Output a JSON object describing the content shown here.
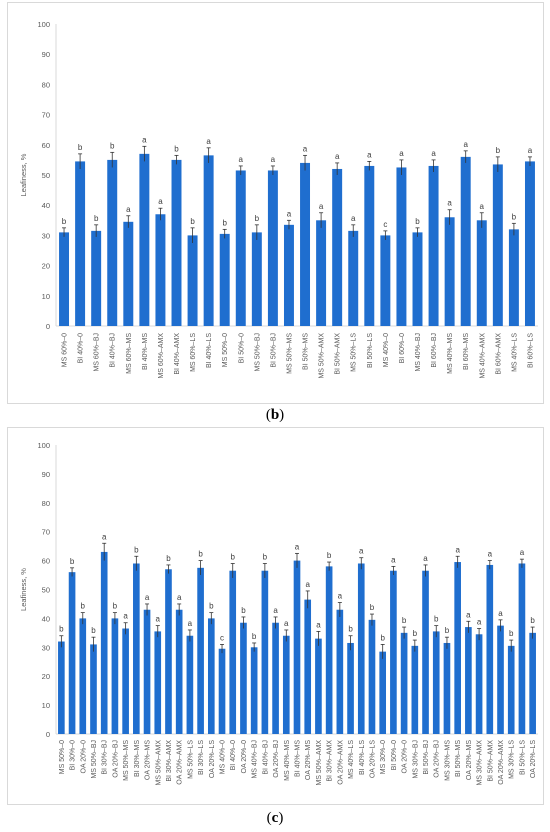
{
  "colors": {
    "bar": "#1f6ecf",
    "axis": "#d9d9d9",
    "grid": "#e8e8e8",
    "text": "#595959",
    "sig": "#404040"
  },
  "captions": {
    "b_open": "(",
    "b_letter": "b",
    "b_close": ")",
    "c_open": "(",
    "c_letter": "c",
    "c_close": ")"
  },
  "chart_data": [
    {
      "type": "bar",
      "panel": "b",
      "ylabel": "Leafiness, %",
      "ylim": [
        0,
        100
      ],
      "yticks": [
        0,
        10,
        20,
        30,
        40,
        50,
        60,
        70,
        80,
        90,
        100
      ],
      "grid": false,
      "categories": [
        "MS 60%–0",
        "BI 40%–0",
        "MS 60%–BJ",
        "BI 40%–BJ",
        "MS 60%–MS",
        "BI 40%–MS",
        "MS 60%–AMX",
        "BI 40%–AMX",
        "MS 60%–LS",
        "BI 40%–LS",
        "MS 50%–0",
        "BI 50%–0",
        "MS 50%–BJ",
        "BI 50%–BJ",
        "MS 50%–MS",
        "BI 50%–MS",
        "MS 50%–AMX",
        "BI 50%–AMX",
        "MS 50%–LS",
        "BI 50%–LS",
        "MS 40%–0",
        "BI 60%–0",
        "MS 40%–BJ",
        "BI 60%–BJ",
        "MS 40%–MS",
        "BI 60%–MS",
        "MS 40%–AMX",
        "BI 60%–AMX",
        "MS 40%–LS",
        "BI 60%–LS"
      ],
      "values": [
        31,
        54.5,
        31.5,
        55,
        34.5,
        57,
        37,
        55,
        30,
        56.5,
        30.5,
        51.5,
        31,
        51.5,
        33.5,
        54,
        35,
        52,
        31.5,
        53,
        30,
        52.5,
        31,
        53,
        36,
        56,
        35,
        53.5,
        32,
        54.5
      ],
      "errors": [
        1.5,
        2.5,
        2,
        2.5,
        2,
        2.5,
        2,
        1.5,
        2.5,
        2.5,
        1.5,
        1.5,
        2.5,
        1.5,
        1.5,
        2.5,
        2.5,
        2,
        2,
        1.5,
        1.5,
        2.5,
        1.5,
        2,
        2.5,
        2,
        2.5,
        2.5,
        2,
        1.5
      ],
      "letters": [
        "b",
        "b",
        "b",
        "b",
        "a",
        "a",
        "a",
        "b",
        "b",
        "a",
        "b",
        "a",
        "b",
        "a",
        "a",
        "a",
        "a",
        "a",
        "a",
        "a",
        "c",
        "a",
        "b",
        "a",
        "a",
        "a",
        "a",
        "b",
        "b",
        "a"
      ]
    },
    {
      "type": "bar",
      "panel": "c",
      "ylabel": "Leafiness, %",
      "ylim": [
        0,
        100
      ],
      "yticks": [
        0,
        10,
        20,
        30,
        40,
        50,
        60,
        70,
        80,
        90,
        100
      ],
      "grid": false,
      "categories": [
        "MS 50%–0",
        "BI 30%–0",
        "OA 20%–0",
        "MS 50%–BJ",
        "BI 30%–BJ",
        "OA 20%–BJ",
        "MS 50%–MS",
        "BI 30%–MS",
        "OA 20%–MS",
        "MS 50%–AMX",
        "BI 30%–AMX",
        "OA 20%–AMX",
        "MS 50%–LS",
        "BI 30%–LS",
        "OA 20%–LS",
        "MS 40%–0",
        "BI 40%–0",
        "OA 20%–0",
        "MS 40%–BJ",
        "BI 40%–BJ",
        "OA 20%–BJ",
        "MS 40%–MS",
        "BI 40%–MS",
        "OA 20%–MS",
        "MS 50%–AMX",
        "BI 30%–AMX",
        "OA 20%–AMX",
        "MS 40%–LS",
        "BI 40%–LS",
        "OA 20%–LS",
        "MS 30%–0",
        "BI 50%–0",
        "OA 20%–0",
        "MS 30%–BJ",
        "BI 50%–BJ",
        "OA 20%–BJ",
        "MS 30%–MS",
        "BI 50%–MS",
        "OA 20%–MS",
        "MS 30%–AMX",
        "BI 50%–AMX",
        "OA 20%–AMX",
        "MS 30%–LS",
        "BI 50%–LS",
        "OA 20%–LS"
      ],
      "values": [
        32,
        56,
        40,
        31,
        63,
        40,
        36.5,
        59,
        43,
        35.5,
        57,
        43,
        34,
        57.5,
        40,
        29.5,
        56.5,
        38.5,
        30,
        56.5,
        38.5,
        34,
        60,
        46.5,
        33,
        58,
        43,
        31.5,
        59,
        39.5,
        28.5,
        56.5,
        35,
        30.5,
        56.5,
        35.5,
        31.5,
        59.5,
        37,
        34.5,
        58.5,
        37.5,
        30.5,
        59,
        35
      ],
      "errors": [
        2,
        1.5,
        2,
        2.5,
        3,
        2,
        2,
        2.5,
        2,
        2,
        1.5,
        2,
        2,
        2.5,
        2,
        1.5,
        2.5,
        2,
        1.5,
        2.5,
        2,
        2,
        2.5,
        3,
        2.5,
        1.5,
        2.5,
        2.5,
        2,
        2,
        2.5,
        1.5,
        2,
        2,
        2,
        2,
        2,
        2,
        2,
        2,
        1.5,
        2,
        2,
        1.5,
        2
      ],
      "letters": [
        "b",
        "b",
        "b",
        "b",
        "a",
        "b",
        "a",
        "b",
        "a",
        "a",
        "b",
        "a",
        "a",
        "b",
        "b",
        "c",
        "b",
        "b",
        "b",
        "b",
        "a",
        "a",
        "a",
        "a",
        "a",
        "b",
        "a",
        "b",
        "a",
        "b",
        "b",
        "a",
        "b",
        "b",
        "a",
        "b",
        "b",
        "a",
        "a",
        "a",
        "a",
        "a",
        "b",
        "a",
        "b"
      ]
    }
  ]
}
